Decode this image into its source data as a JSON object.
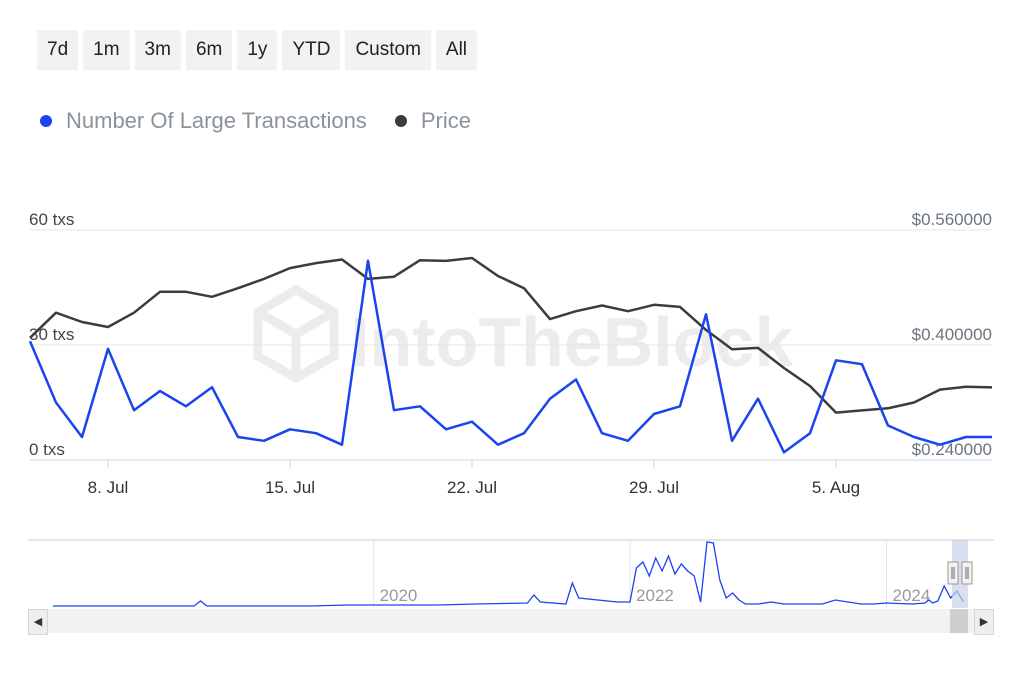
{
  "range_buttons": [
    "7d",
    "1m",
    "3m",
    "6m",
    "1y",
    "YTD",
    "Custom",
    "All"
  ],
  "legend": [
    {
      "label": "Number Of Large Transactions",
      "color": "#1a44f0"
    },
    {
      "label": "Price",
      "color": "#3a3d40"
    }
  ],
  "watermark": "IntoTheBlock",
  "colors": {
    "transactions": "#1a44f0",
    "price": "#3a3d40",
    "navigator_mask": "#c9d2e8"
  },
  "chart_data": [
    {
      "type": "line",
      "series": [
        {
          "name": "Number Of Large Transactions",
          "axis": "left",
          "x": [
            "2024-07-05",
            "2024-07-06",
            "2024-07-07",
            "2024-07-08",
            "2024-07-09",
            "2024-07-10",
            "2024-07-11",
            "2024-07-12",
            "2024-07-13",
            "2024-07-14",
            "2024-07-15",
            "2024-07-16",
            "2024-07-17",
            "2024-07-18",
            "2024-07-19",
            "2024-07-20",
            "2024-07-21",
            "2024-07-22",
            "2024-07-23",
            "2024-07-24",
            "2024-07-25",
            "2024-07-26",
            "2024-07-27",
            "2024-07-28",
            "2024-07-29",
            "2024-07-30",
            "2024-07-31",
            "2024-08-01",
            "2024-08-02",
            "2024-08-03",
            "2024-08-04",
            "2024-08-05",
            "2024-08-06",
            "2024-08-07",
            "2024-08-08",
            "2024-08-09",
            "2024-08-10",
            "2024-08-11"
          ],
          "values": [
            31,
            15,
            6,
            29,
            13,
            18,
            14,
            19,
            6,
            5,
            8,
            7,
            4,
            52,
            13,
            14,
            8,
            10,
            4,
            7,
            16,
            21,
            7,
            5,
            12,
            14,
            38,
            5,
            16,
            2,
            7,
            26,
            25,
            9,
            6,
            4,
            6,
            6
          ]
        },
        {
          "name": "Price",
          "axis": "right",
          "x": [
            "2024-07-05",
            "2024-07-06",
            "2024-07-07",
            "2024-07-08",
            "2024-07-09",
            "2024-07-10",
            "2024-07-11",
            "2024-07-12",
            "2024-07-13",
            "2024-07-14",
            "2024-07-15",
            "2024-07-16",
            "2024-07-17",
            "2024-07-18",
            "2024-07-19",
            "2024-07-20",
            "2024-07-21",
            "2024-07-22",
            "2024-07-23",
            "2024-07-24",
            "2024-07-25",
            "2024-07-26",
            "2024-07-27",
            "2024-07-28",
            "2024-07-29",
            "2024-07-30",
            "2024-07-31",
            "2024-08-01",
            "2024-08-02",
            "2024-08-03",
            "2024-08-04",
            "2024-08-05",
            "2024-08-06",
            "2024-08-07",
            "2024-08-08",
            "2024-08-09",
            "2024-08-10",
            "2024-08-11"
          ],
          "values": [
            0.41,
            0.445,
            0.432,
            0.425,
            0.445,
            0.474,
            0.474,
            0.467,
            0.479,
            0.492,
            0.507,
            0.514,
            0.519,
            0.492,
            0.495,
            0.518,
            0.517,
            0.521,
            0.496,
            0.479,
            0.436,
            0.447,
            0.455,
            0.447,
            0.456,
            0.453,
            0.421,
            0.394,
            0.396,
            0.368,
            0.343,
            0.306,
            0.309,
            0.312,
            0.32,
            0.338,
            0.342,
            0.341
          ]
        }
      ],
      "x_ticks": [
        {
          "value": "2024-07-08",
          "label": "8. Jul"
        },
        {
          "value": "2024-07-15",
          "label": "15. Jul"
        },
        {
          "value": "2024-07-22",
          "label": "22. Jul"
        },
        {
          "value": "2024-07-29",
          "label": "29. Jul"
        },
        {
          "value": "2024-08-05",
          "label": "5. Aug"
        }
      ],
      "y_left": {
        "ticks": [
          {
            "value": 0,
            "label": "0 txs"
          },
          {
            "value": 30,
            "label": "30 txs"
          },
          {
            "value": 60,
            "label": "60 txs"
          }
        ],
        "range": [
          0,
          60
        ]
      },
      "y_right": {
        "ticks": [
          {
            "value": 0.24,
            "label": "$0.240000"
          },
          {
            "value": 0.4,
            "label": "$0.400000"
          },
          {
            "value": 0.56,
            "label": "$0.560000"
          }
        ],
        "range": [
          0.24,
          0.56
        ]
      },
      "grid": true,
      "legend": "top-left"
    },
    {
      "type": "area",
      "role": "navigator",
      "x_ticks": [
        {
          "value": 2020,
          "label": "2020"
        },
        {
          "value": 2022,
          "label": "2022"
        },
        {
          "value": 2024,
          "label": "2024"
        }
      ],
      "x_range": [
        2017.5,
        2024.62
      ],
      "y_range": [
        0,
        60
      ],
      "selected_range": [
        "2024-07-05",
        "2024-08-11"
      ],
      "series": [
        {
          "name": "Number Of Large Transactions",
          "x": [
            2017.5,
            2018.4,
            2018.6,
            2018.65,
            2018.7,
            2019.5,
            2019.8,
            2020.5,
            2020.8,
            2021.2,
            2021.25,
            2021.3,
            2021.5,
            2021.55,
            2021.6,
            2021.9,
            2022.0,
            2022.05,
            2022.1,
            2022.15,
            2022.2,
            2022.25,
            2022.3,
            2022.35,
            2022.4,
            2022.45,
            2022.5,
            2022.55,
            2022.6,
            2022.65,
            2022.7,
            2022.75,
            2022.8,
            2022.85,
            2022.9,
            2023.0,
            2023.1,
            2023.2,
            2023.5,
            2023.6,
            2023.8,
            2023.9,
            2024.0,
            2024.2,
            2024.3,
            2024.33,
            2024.36,
            2024.4,
            2024.45,
            2024.5,
            2024.55,
            2024.6
          ],
          "values": [
            0,
            0,
            0,
            5,
            0,
            0,
            1,
            1,
            2,
            3,
            11,
            4,
            2,
            23,
            8,
            4,
            4,
            38,
            44,
            30,
            48,
            35,
            50,
            32,
            42,
            35,
            30,
            4,
            64,
            63,
            26,
            8,
            13,
            6,
            2,
            2,
            4,
            2,
            2,
            6,
            2,
            2,
            3,
            2,
            3,
            6,
            3,
            5,
            20,
            8,
            15,
            4
          ]
        }
      ]
    }
  ]
}
